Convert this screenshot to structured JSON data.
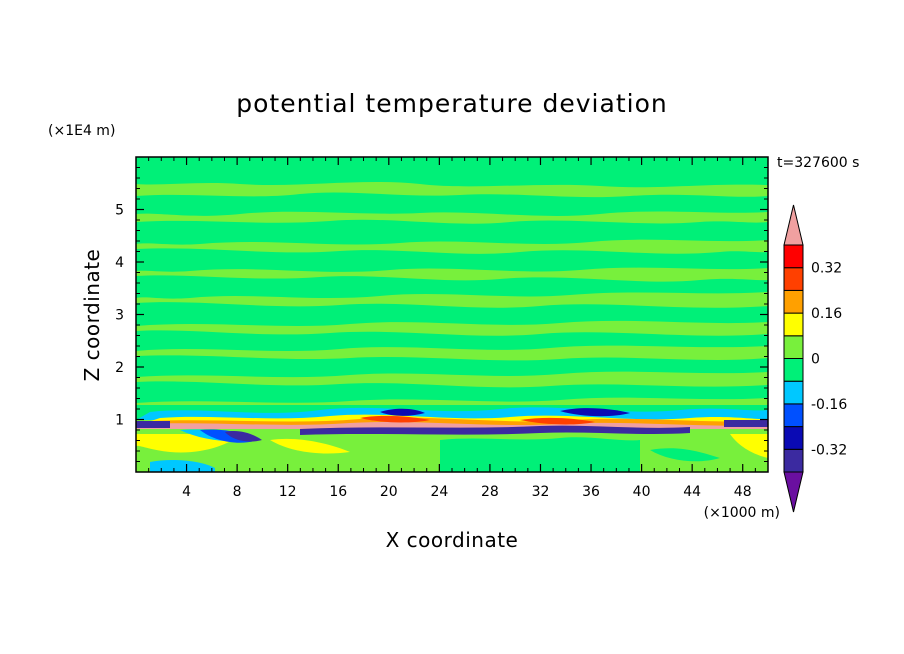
{
  "chart_data": {
    "type": "heatmap",
    "title": "potential temperature deviation",
    "xlabel": "X coordinate",
    "ylabel": "Z coordinate",
    "x_scale_label": "(×1000 m)",
    "y_scale_label": "(×1E4 m)",
    "time_label": "t=327600 s",
    "xlim": [
      0,
      50
    ],
    "ylim": [
      0,
      6
    ],
    "x_ticks": [
      4,
      8,
      12,
      16,
      20,
      24,
      28,
      32,
      36,
      40,
      44,
      48
    ],
    "x_tick_labels": [
      "4",
      "8",
      "12",
      "16",
      "20",
      "24",
      "28",
      "32",
      "36",
      "40",
      "44",
      "48"
    ],
    "y_ticks": [
      1,
      2,
      3,
      4,
      5
    ],
    "y_tick_labels": [
      "1",
      "2",
      "3",
      "4",
      "5"
    ],
    "colorbar": {
      "levels": [
        -0.4,
        -0.32,
        -0.24,
        -0.16,
        -0.08,
        0,
        0.08,
        0.16,
        0.24,
        0.32,
        0.4
      ],
      "colors": [
        "#6a0fa0",
        "#3b2aa0",
        "#0a0ab4",
        "#0050ff",
        "#00c8ff",
        "#00f078",
        "#78f03c",
        "#ffff00",
        "#ffa000",
        "#ff4000",
        "#ff0000",
        "#f0a0a0"
      ],
      "labels": [
        "0.32",
        "0.16",
        "0",
        "-0.16",
        "-0.32"
      ],
      "label_values": [
        0.32,
        0.16,
        0,
        -0.16,
        -0.32
      ]
    }
  }
}
